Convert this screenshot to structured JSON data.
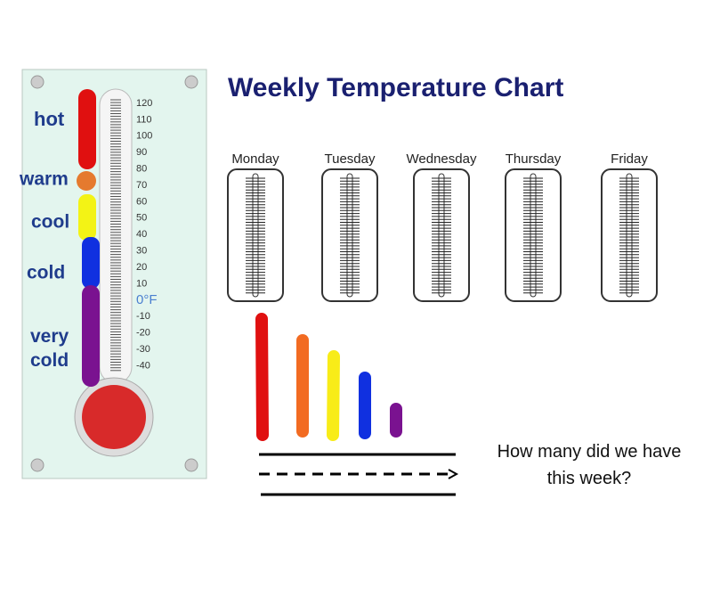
{
  "title": "Weekly Temperature Chart",
  "scale": {
    "labels": [
      "120",
      "110",
      "100",
      "90",
      "80",
      "70",
      "60",
      "50",
      "40",
      "30",
      "20",
      "10",
      "0°F",
      "-10",
      "-20",
      "-30",
      "-40"
    ]
  },
  "categories": [
    "hot",
    "warm",
    "cool",
    "cold",
    "very cold"
  ],
  "days": [
    "Monday",
    "Tuesday",
    "Wednesday",
    "Thursday",
    "Friday"
  ],
  "question": "How many did we have this week?"
}
